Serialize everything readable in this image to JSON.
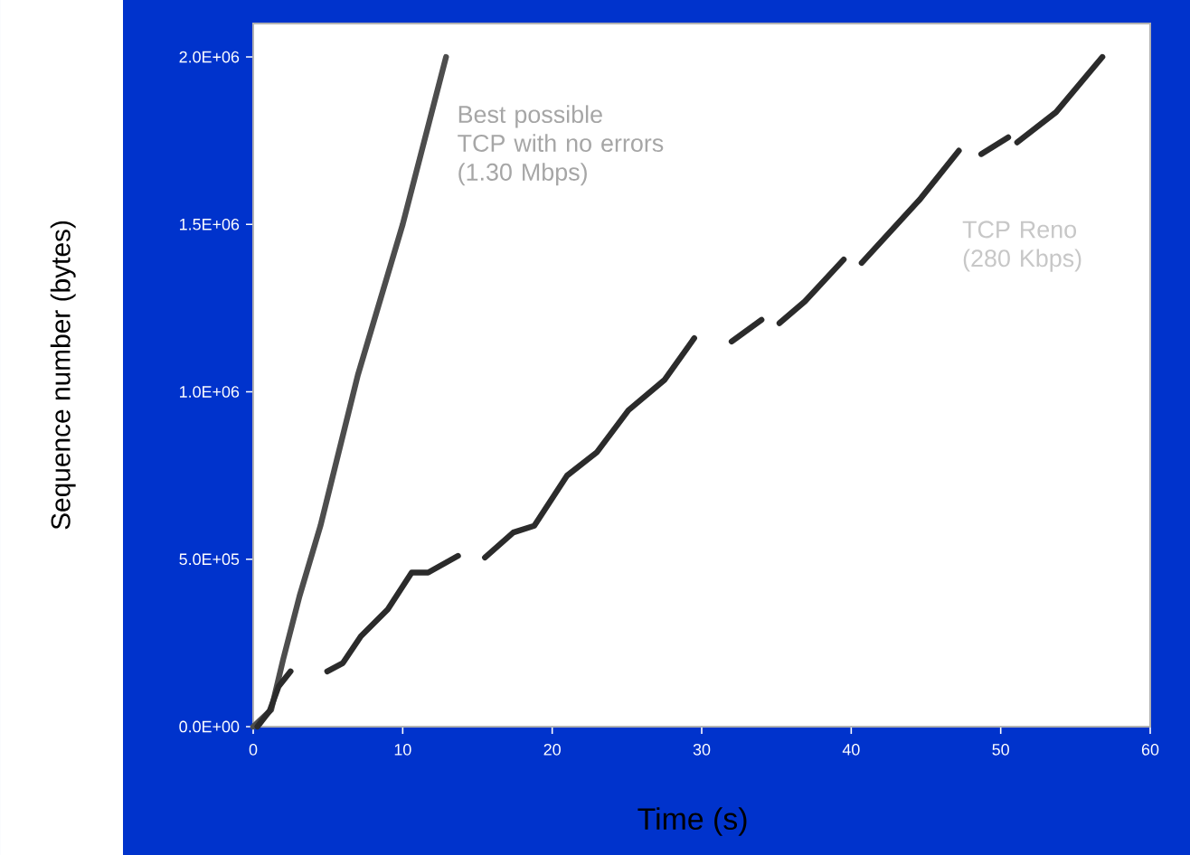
{
  "chart_data": {
    "type": "line",
    "xlabel": "Time (s)",
    "ylabel": "Sequence number (bytes)",
    "xlim": [
      0,
      60
    ],
    "ylim": [
      0,
      2100000
    ],
    "xticks": [
      0,
      10,
      20,
      30,
      40,
      50,
      60
    ],
    "yticks": [
      {
        "value": 0,
        "label": "0.0E+00"
      },
      {
        "value": 500000,
        "label": "5.0E+05"
      },
      {
        "value": 1000000,
        "label": "1.0E+06"
      },
      {
        "value": 1500000,
        "label": "1.5E+06"
      },
      {
        "value": 2000000,
        "label": "2.0E+06"
      }
    ],
    "grid": false,
    "legend": false,
    "marker": "none",
    "line_style": "solid",
    "series": [
      {
        "name": "Best possible\nTCP with no errors\n(1.30 Mbps)",
        "color": "#4d4d4d",
        "x": [
          0,
          1.2,
          2,
          3.1,
          4.5,
          7,
          10,
          12.9
        ],
        "values": [
          0,
          50000,
          200000,
          390000,
          600000,
          1050000,
          1500000,
          2000000
        ]
      },
      {
        "name": "TCP Reno\n(280 Kbps)",
        "color": "#2b2b2b",
        "x": [
          0.28,
          1.1,
          1.7,
          2.5,
          3.7,
          4.95,
          6.0,
          7.2,
          9.0,
          10.6,
          11.7,
          13.7,
          14.6,
          15.5,
          17.4,
          18.8,
          21.0,
          23.0,
          25.1,
          27.5,
          29.5,
          30.8,
          32.0,
          34.0,
          34.6,
          35.2,
          36.9,
          39.5,
          40.1,
          40.7,
          44.6,
          47.2,
          48.0,
          48.7,
          50.5,
          50.8,
          51.1,
          53.7,
          56.8
        ],
        "values": [
          0,
          47000,
          120000,
          165000,
          null,
          165000,
          190000,
          270000,
          350000,
          460000,
          460000,
          510000,
          null,
          505000,
          580000,
          600000,
          750000,
          820000,
          945000,
          1035000,
          1160000,
          null,
          1150000,
          1215000,
          null,
          1205000,
          1270000,
          1395000,
          null,
          1385000,
          1575000,
          1720000,
          null,
          1710000,
          1760000,
          null,
          1745000,
          1835000,
          2000000
        ]
      }
    ]
  }
}
